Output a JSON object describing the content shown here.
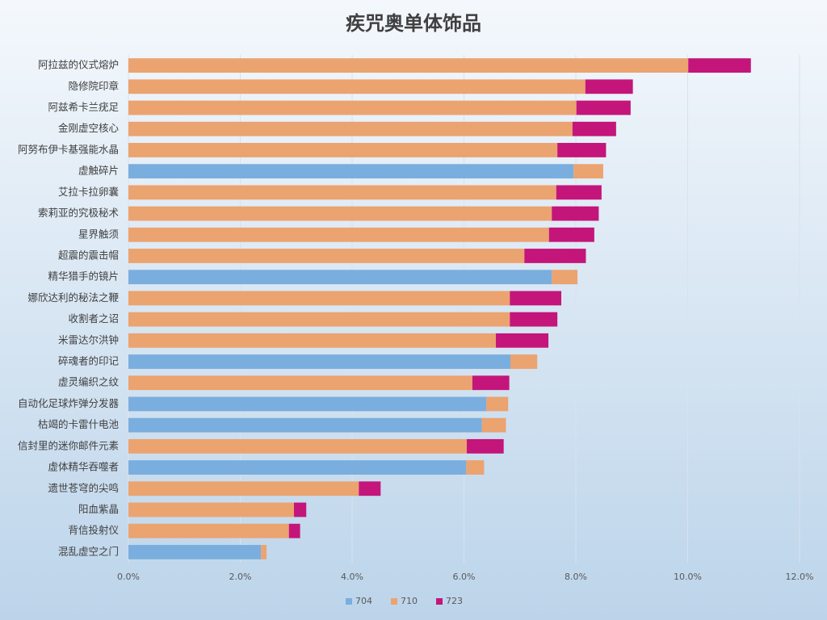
{
  "chart_data": {
    "type": "bar",
    "orientation": "horizontal",
    "stacked": true,
    "title": "疾咒奥单体饰品",
    "categories": [
      "阿拉兹的仪式熔炉",
      "隐修院印章",
      "阿兹希卡兰疣足",
      "金刚虚空核心",
      "阿努布伊卡基强能水晶",
      "虚触碎片",
      "艾拉卡拉卵囊",
      "索莉亚的究极秘术",
      "星界触须",
      "超震的震击帽",
      "精华猎手的镜片",
      "娜欣达利的秘法之鞭",
      "收割者之诏",
      "米雷达尔洪钟",
      "碎魂者的印记",
      "虚灵编织之纹",
      "自动化足球炸弹分发器",
      "枯竭的卡雷什电池",
      "信封里的迷你邮件元素",
      "虚体精华吞噬者",
      "遗世苍穹的尖鸣",
      "阳血紫晶",
      "背信投射仪",
      "混乱虚空之门"
    ],
    "series": [
      {
        "name": "704",
        "color": "#7aaede",
        "values": [
          null,
          null,
          null,
          null,
          null,
          7.96,
          null,
          null,
          null,
          null,
          7.57,
          null,
          null,
          null,
          6.83,
          null,
          6.4,
          6.32,
          null,
          6.04,
          null,
          null,
          null,
          2.37
        ]
      },
      {
        "name": "710",
        "color": "#eba370",
        "values": [
          10.01,
          8.17,
          8.01,
          7.94,
          7.67,
          0.53,
          7.65,
          7.57,
          7.52,
          7.08,
          0.46,
          6.82,
          6.82,
          6.57,
          0.48,
          6.15,
          0.39,
          0.43,
          6.05,
          0.32,
          4.12,
          2.96,
          2.87,
          0.1
        ]
      },
      {
        "name": "723",
        "color": "#c4157a",
        "values": [
          1.12,
          0.85,
          0.97,
          0.78,
          0.87,
          null,
          0.81,
          0.84,
          0.81,
          1.1,
          null,
          0.92,
          0.85,
          0.94,
          null,
          0.66,
          null,
          null,
          0.66,
          null,
          0.39,
          0.22,
          0.2,
          null
        ]
      }
    ],
    "xlim": [
      0,
      12
    ],
    "xticks": [
      {
        "value": 0,
        "label": "0.0%"
      },
      {
        "value": 2,
        "label": "2.0%"
      },
      {
        "value": 4,
        "label": "4.0%"
      },
      {
        "value": 6,
        "label": "6.0%"
      },
      {
        "value": 8,
        "label": "8.0%"
      },
      {
        "value": 10,
        "label": "10.0%"
      },
      {
        "value": 12,
        "label": "12.0%"
      }
    ],
    "grid": true,
    "legend": "bottom"
  }
}
